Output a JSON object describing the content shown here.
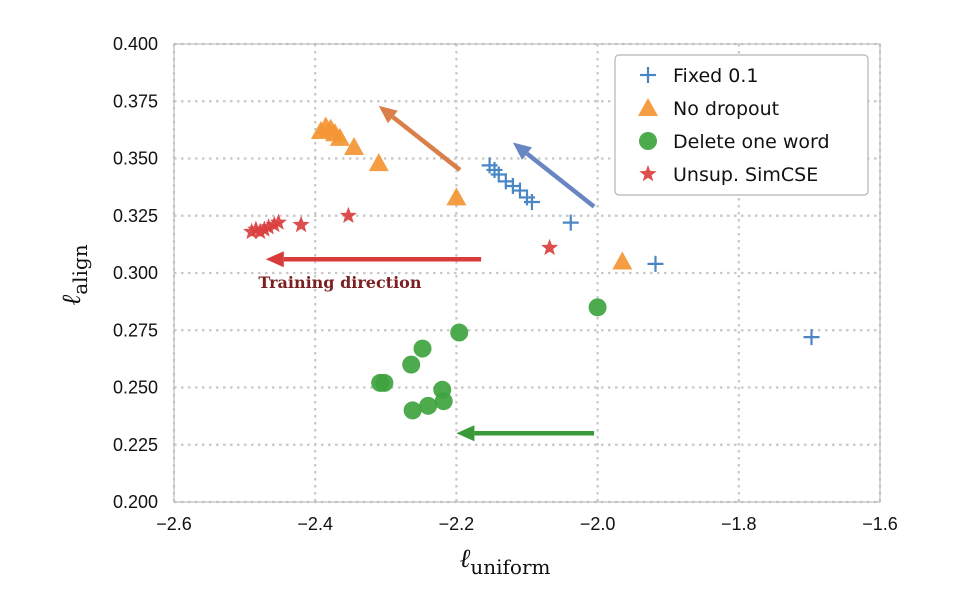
{
  "chart_data": {
    "type": "scatter",
    "xlabel": "ℓ",
    "xlabel_sub": "uniform",
    "ylabel": "ℓ",
    "ylabel_sub": "align",
    "xlim": [
      -2.6,
      -1.6
    ],
    "ylim": [
      0.2,
      0.4
    ],
    "xticks": [
      -2.6,
      -2.4,
      -2.2,
      -2.0,
      -1.8,
      -1.6
    ],
    "xtick_labels": [
      "−2.6",
      "−2.4",
      "−2.2",
      "−2.0",
      "−1.8",
      "−1.6"
    ],
    "yticks": [
      0.2,
      0.225,
      0.25,
      0.275,
      0.3,
      0.325,
      0.35,
      0.375,
      0.4
    ],
    "ytick_labels": [
      "0.200",
      "0.225",
      "0.250",
      "0.275",
      "0.300",
      "0.325",
      "0.350",
      "0.375",
      "0.400"
    ],
    "grid": true,
    "legend_position": "top-right",
    "series": [
      {
        "name": "Fixed 0.1",
        "marker": "plus",
        "color": "#4a86c5",
        "points": [
          [
            -2.153,
            0.347
          ],
          [
            -2.146,
            0.345
          ],
          [
            -2.14,
            0.343
          ],
          [
            -2.13,
            0.34
          ],
          [
            -2.12,
            0.338
          ],
          [
            -2.11,
            0.336
          ],
          [
            -2.1,
            0.333
          ],
          [
            -2.093,
            0.331
          ],
          [
            -2.038,
            0.322
          ],
          [
            -1.918,
            0.304
          ],
          [
            -1.697,
            0.272
          ]
        ]
      },
      {
        "name": "No dropout",
        "marker": "triangle",
        "color": "#f39533",
        "points": [
          [
            -2.392,
            0.362
          ],
          [
            -2.385,
            0.364
          ],
          [
            -2.378,
            0.363
          ],
          [
            -2.372,
            0.361
          ],
          [
            -2.365,
            0.359
          ],
          [
            -2.345,
            0.355
          ],
          [
            -2.31,
            0.348
          ],
          [
            -2.2,
            0.333
          ],
          [
            -1.965,
            0.305
          ]
        ]
      },
      {
        "name": "Delete one word",
        "marker": "circle",
        "color": "#3ea33e",
        "points": [
          [
            -2.196,
            0.274
          ],
          [
            -2.248,
            0.267
          ],
          [
            -2.264,
            0.26
          ],
          [
            -2.308,
            0.252
          ],
          [
            -2.302,
            0.252
          ],
          [
            -2.22,
            0.249
          ],
          [
            -2.218,
            0.244
          ],
          [
            -2.24,
            0.242
          ],
          [
            -2.262,
            0.24
          ],
          [
            -2.0,
            0.285
          ]
        ]
      },
      {
        "name": "Unsup. SimCSE",
        "marker": "star",
        "color": "#d9403f",
        "points": [
          [
            -2.49,
            0.318
          ],
          [
            -2.484,
            0.319
          ],
          [
            -2.478,
            0.318
          ],
          [
            -2.472,
            0.319
          ],
          [
            -2.466,
            0.32
          ],
          [
            -2.458,
            0.321
          ],
          [
            -2.452,
            0.322
          ],
          [
            -2.42,
            0.321
          ],
          [
            -2.353,
            0.325
          ],
          [
            -2.068,
            0.311
          ]
        ]
      }
    ],
    "arrows": [
      {
        "series": "Fixed 0.1",
        "color": "#6a86c2",
        "from": [
          -2.005,
          0.329
        ],
        "to": [
          -2.12,
          0.357
        ]
      },
      {
        "series": "No dropout",
        "color": "#d9804a",
        "from": [
          -2.195,
          0.345
        ],
        "to": [
          -2.31,
          0.373
        ]
      },
      {
        "series": "Unsup. SimCSE",
        "color": "#d93a3a",
        "from": [
          -2.165,
          0.306
        ],
        "to": [
          -2.47,
          0.306
        ]
      },
      {
        "series": "Delete one word",
        "color": "#3a9a3a",
        "from": [
          -2.005,
          0.23
        ],
        "to": [
          -2.2,
          0.23
        ]
      }
    ],
    "annotation": {
      "text": "Training direction",
      "color": "#7b1f20",
      "x": -2.365,
      "y": 0.296
    }
  }
}
